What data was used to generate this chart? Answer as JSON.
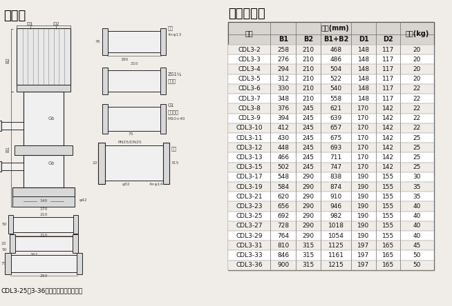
{
  "title_left": "安装图",
  "title_right": "尺寸和重量",
  "subtitle": "CDL3-25～3-36无椭圆法兰型管路联接",
  "table_data": [
    [
      "CDL3-2",
      258,
      210,
      468,
      148,
      117,
      20
    ],
    [
      "CDL3-3",
      276,
      210,
      486,
      148,
      117,
      20
    ],
    [
      "CDL3-4",
      294,
      210,
      504,
      148,
      117,
      20
    ],
    [
      "CDL3-5",
      312,
      210,
      522,
      148,
      117,
      20
    ],
    [
      "CDL3-6",
      330,
      210,
      540,
      148,
      117,
      22
    ],
    [
      "CDL3-7",
      348,
      210,
      558,
      148,
      117,
      22
    ],
    [
      "CDL3-8",
      376,
      245,
      621,
      170,
      142,
      22
    ],
    [
      "CDL3-9",
      394,
      245,
      639,
      170,
      142,
      22
    ],
    [
      "CDL3-10",
      412,
      245,
      657,
      170,
      142,
      22
    ],
    [
      "CDL3-11",
      430,
      245,
      675,
      170,
      142,
      25
    ],
    [
      "CDL3-12",
      448,
      245,
      693,
      170,
      142,
      25
    ],
    [
      "CDL3-13",
      466,
      245,
      711,
      170,
      142,
      25
    ],
    [
      "CDL3-15",
      502,
      245,
      747,
      170,
      142,
      25
    ],
    [
      "CDL3-17",
      548,
      290,
      838,
      190,
      155,
      30
    ],
    [
      "CDL3-19",
      584,
      290,
      874,
      190,
      155,
      35
    ],
    [
      "CDL3-21",
      620,
      290,
      910,
      190,
      155,
      35
    ],
    [
      "CDL3-23",
      656,
      290,
      946,
      190,
      155,
      40
    ],
    [
      "CDL3-25",
      692,
      290,
      982,
      190,
      155,
      40
    ],
    [
      "CDL3-27",
      728,
      290,
      1018,
      190,
      155,
      40
    ],
    [
      "CDL3-29",
      764,
      290,
      1054,
      190,
      155,
      40
    ],
    [
      "CDL3-31",
      810,
      315,
      1125,
      197,
      165,
      45
    ],
    [
      "CDL3-33",
      846,
      315,
      1161,
      197,
      165,
      50
    ],
    [
      "CDL3-36",
      900,
      315,
      1215,
      197,
      165,
      50
    ]
  ],
  "bg_color": "#f0ede8",
  "header_bg": "#d8d5d0",
  "row_even": "#f0ede8",
  "row_odd": "#ffffff",
  "border_color": "#888888",
  "text_color": "#111111",
  "dim_color": "#444444",
  "lw_main": 1.0,
  "lw_thin": 0.6,
  "lw_dim": 0.5,
  "fs_title": 12,
  "fs_table_hdr": 7,
  "fs_table_data": 6.5,
  "fs_dim": 5,
  "fs_subtitle": 6.5
}
